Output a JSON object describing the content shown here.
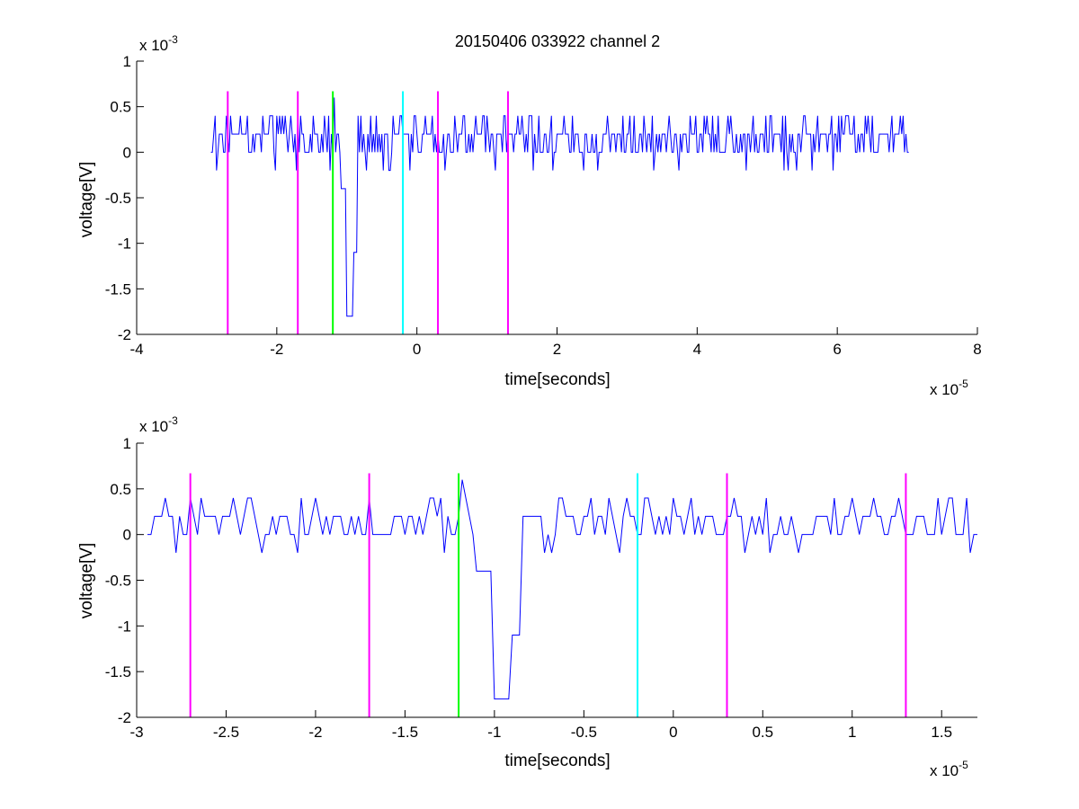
{
  "chart_data": [
    {
      "type": "line",
      "title": "20150406 033922 channel 2",
      "xlabel": "time[seconds]",
      "ylabel": "voltage[V]",
      "x_scale_label": "x 10",
      "x_scale_exponent": "-5",
      "y_scale_label": "x 10",
      "y_scale_exponent": "-3",
      "xlim": [
        -4,
        8
      ],
      "ylim": [
        -2,
        1
      ],
      "xticks": [
        -4,
        -2,
        0,
        2,
        4,
        6,
        8
      ],
      "xtick_labels": [
        "-4",
        "-2",
        "0",
        "2",
        "4",
        "6",
        "8"
      ],
      "yticks": [
        -2,
        -1.5,
        -1,
        -0.5,
        0,
        0.5,
        1
      ],
      "ytick_labels": [
        "-2",
        "-1.5",
        "-1",
        "-0.5",
        "0",
        "0.5",
        "1"
      ],
      "grid": false,
      "signal": {
        "color": "#0000ff",
        "x_start": -2.94,
        "x_end": 7.02,
        "baseline": 0.1,
        "spike_min_x": -0.96,
        "spike_min_y": -1.8,
        "spike_peak_y": 0.6
      },
      "markers": [
        {
          "x": -2.7,
          "color": "#ff00ff"
        },
        {
          "x": -1.7,
          "color": "#ff00ff"
        },
        {
          "x": -1.2,
          "color": "#00ff00"
        },
        {
          "x": -0.2,
          "color": "#00ffff"
        },
        {
          "x": 0.3,
          "color": "#ff00ff"
        },
        {
          "x": 1.3,
          "color": "#ff00ff"
        }
      ],
      "marker_range": [
        -2,
        0.67
      ]
    },
    {
      "type": "line",
      "title": "",
      "xlabel": "time[seconds]",
      "ylabel": "voltage[V]",
      "x_scale_label": "x 10",
      "x_scale_exponent": "-5",
      "y_scale_label": "x 10",
      "y_scale_exponent": "-3",
      "xlim": [
        -3.0,
        1.7
      ],
      "ylim": [
        -2,
        1
      ],
      "xticks": [
        -3,
        -2.5,
        -2,
        -1.5,
        -1,
        -0.5,
        0,
        0.5,
        1,
        1.5
      ],
      "xtick_labels": [
        "-3",
        "-2.5",
        "-2",
        "-1.5",
        "-1",
        "-0.5",
        "0",
        "0.5",
        "1",
        "1.5"
      ],
      "yticks": [
        -2,
        -1.5,
        -1,
        -0.5,
        0,
        0.5,
        1
      ],
      "ytick_labels": [
        "-2",
        "-1.5",
        "-1",
        "-0.5",
        "0",
        "0.5",
        "1"
      ],
      "grid": false,
      "signal": {
        "color": "#0000ff",
        "x_start": -2.94,
        "x_end": 1.7,
        "baseline": 0.1,
        "spike_min_x": -0.96,
        "spike_min_y": -1.8,
        "spike_peak_y": 0.6
      },
      "markers": [
        {
          "x": -2.7,
          "color": "#ff00ff"
        },
        {
          "x": -1.7,
          "color": "#ff00ff"
        },
        {
          "x": -1.2,
          "color": "#00ff00"
        },
        {
          "x": -0.2,
          "color": "#00ffff"
        },
        {
          "x": 0.3,
          "color": "#ff00ff"
        },
        {
          "x": 1.3,
          "color": "#ff00ff"
        }
      ],
      "marker_range": [
        -2,
        0.67
      ]
    }
  ]
}
